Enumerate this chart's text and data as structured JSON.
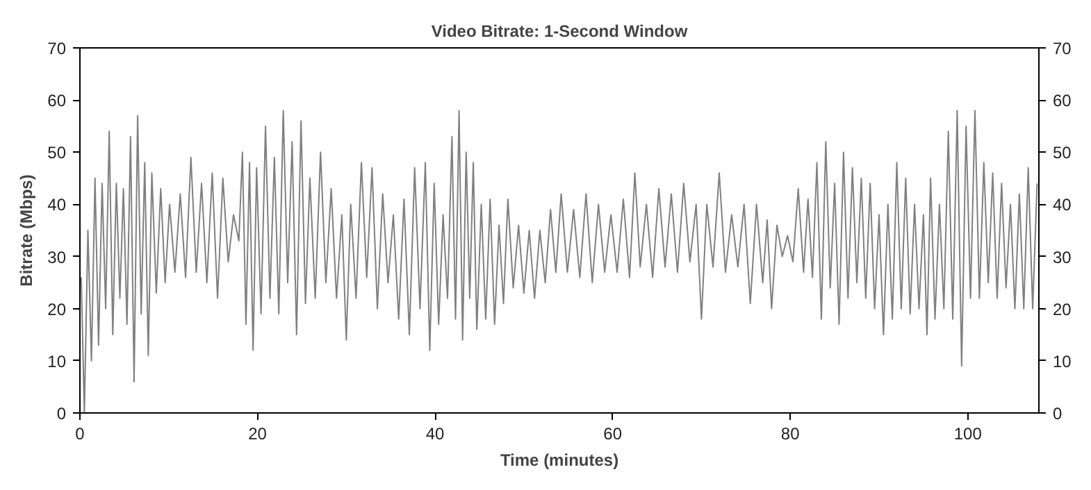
{
  "chart_data": {
    "type": "line",
    "title": "Video Bitrate: 1-Second Window",
    "xlabel": "Time (minutes)",
    "ylabel": "Bitrate (Mbps)",
    "xlim": [
      0,
      108
    ],
    "xticks": [
      0,
      20,
      40,
      60,
      80,
      100
    ],
    "ylim": [
      0,
      70
    ],
    "yticks": [
      0,
      10,
      20,
      30,
      40,
      50,
      60,
      70
    ],
    "y2lim": [
      0,
      70
    ],
    "y2ticks": [
      0,
      10,
      20,
      30,
      40,
      50,
      60,
      70
    ],
    "grid": false,
    "marker": "none",
    "line_style": "solid",
    "series": [
      {
        "color": "#808080",
        "x": [
          0.15,
          0.5,
          0.9,
          1.3,
          1.7,
          2.1,
          2.5,
          2.9,
          3.3,
          3.7,
          4.1,
          4.5,
          4.9,
          5.3,
          5.7,
          6.1,
          6.5,
          6.9,
          7.3,
          7.7,
          8.1,
          8.6,
          9.1,
          9.6,
          10.1,
          10.7,
          11.3,
          11.9,
          12.5,
          13.1,
          13.7,
          14.3,
          14.9,
          15.5,
          16.1,
          16.7,
          17.3,
          17.9,
          18.3,
          18.7,
          19.1,
          19.5,
          19.9,
          20.4,
          20.9,
          21.4,
          21.9,
          22.4,
          22.9,
          23.4,
          23.9,
          24.4,
          24.9,
          25.4,
          25.9,
          26.5,
          27.1,
          27.7,
          28.3,
          28.9,
          29.5,
          30.0,
          30.5,
          31.1,
          31.7,
          32.3,
          32.9,
          33.5,
          34.1,
          34.7,
          35.3,
          35.9,
          36.5,
          37.1,
          37.7,
          38.3,
          38.9,
          39.4,
          39.9,
          40.4,
          40.9,
          41.4,
          41.9,
          42.3,
          42.7,
          43.1,
          43.5,
          43.9,
          44.3,
          44.7,
          45.2,
          45.7,
          46.2,
          46.7,
          47.2,
          47.7,
          48.2,
          48.8,
          49.4,
          50.0,
          50.6,
          51.2,
          51.8,
          52.4,
          53.0,
          53.6,
          54.2,
          54.9,
          55.6,
          56.3,
          57.0,
          57.7,
          58.4,
          59.1,
          59.8,
          60.5,
          61.2,
          61.9,
          62.5,
          63.1,
          63.8,
          64.5,
          65.2,
          65.9,
          66.6,
          67.3,
          68.0,
          68.7,
          69.4,
          70.0,
          70.6,
          71.3,
          72.0,
          72.7,
          73.4,
          74.1,
          74.8,
          75.5,
          76.2,
          76.9,
          77.4,
          77.9,
          78.5,
          79.1,
          79.7,
          80.3,
          80.9,
          81.5,
          82.0,
          82.5,
          83.0,
          83.5,
          84.0,
          84.5,
          85.0,
          85.5,
          86.0,
          86.5,
          87.0,
          87.5,
          88.0,
          88.5,
          89.0,
          89.5,
          90.0,
          90.5,
          91.0,
          91.5,
          92.0,
          92.5,
          93.0,
          93.5,
          94.0,
          94.5,
          95.0,
          95.4,
          95.8,
          96.3,
          96.8,
          97.3,
          97.8,
          98.3,
          98.8,
          99.3,
          99.8,
          100.3,
          100.8,
          101.3,
          101.8,
          102.3,
          102.8,
          103.3,
          103.8,
          104.3,
          104.8,
          105.3,
          105.8,
          106.3,
          106.8,
          107.3,
          107.8
        ],
        "values": [
          26,
          0,
          35,
          10,
          45,
          13,
          44,
          20,
          54,
          15,
          44,
          22,
          43,
          17,
          53,
          6,
          57,
          19,
          48,
          11,
          46,
          23,
          43,
          25,
          40,
          27,
          42,
          26,
          49,
          27,
          44,
          25,
          46,
          22,
          45,
          29,
          38,
          33,
          50,
          17,
          48,
          12,
          47,
          19,
          55,
          22,
          49,
          19,
          58,
          25,
          52,
          15,
          56,
          21,
          45,
          22,
          50,
          25,
          43,
          22,
          38,
          14,
          40,
          22,
          48,
          26,
          47,
          20,
          42,
          25,
          38,
          18,
          41,
          15,
          47,
          20,
          48,
          12,
          44,
          17,
          38,
          22,
          53,
          18,
          58,
          14,
          50,
          22,
          48,
          16,
          40,
          18,
          41,
          17,
          36,
          21,
          41,
          24,
          36,
          23,
          35,
          22,
          35,
          25,
          39,
          27,
          42,
          27,
          39,
          26,
          42,
          25,
          40,
          27,
          38,
          27,
          41,
          26,
          46,
          28,
          40,
          26,
          43,
          28,
          42,
          27,
          44,
          29,
          40,
          18,
          40,
          28,
          46,
          27,
          38,
          28,
          40,
          21,
          40,
          25,
          37,
          20,
          36,
          30,
          34,
          29,
          43,
          27,
          41,
          26,
          48,
          18,
          52,
          24,
          44,
          17,
          50,
          22,
          47,
          25,
          45,
          22,
          44,
          20,
          38,
          15,
          40,
          18,
          48,
          20,
          45,
          19,
          40,
          20,
          38,
          15,
          45,
          18,
          40,
          20,
          54,
          18,
          58,
          9,
          55,
          22,
          58,
          22,
          48,
          25,
          46,
          22,
          44,
          24,
          40,
          20,
          42,
          20,
          47,
          20,
          44
        ]
      }
    ]
  }
}
